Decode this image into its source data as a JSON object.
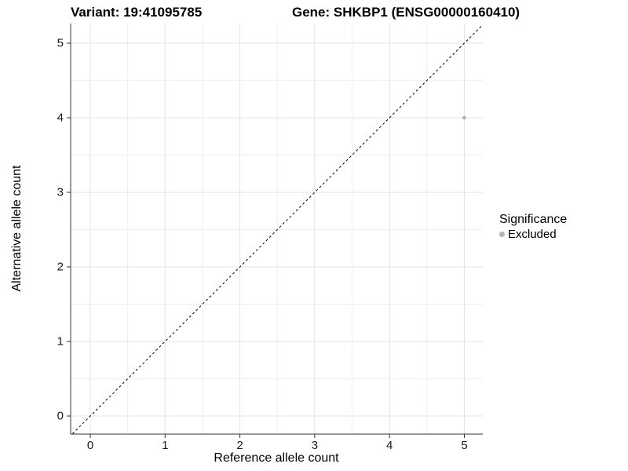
{
  "titles": {
    "variant": "Variant: 19:41095785",
    "gene": "Gene: SHKBP1 (ENSG00000160410)"
  },
  "colors": {
    "background": "#ffffff",
    "axis_line": "#333333",
    "grid_major": "#e3e3e3",
    "grid_minor": "#f0f0f0",
    "identity_line": "#000000",
    "point": "#b3b3b3",
    "text": "#000000"
  },
  "chart_data": {
    "type": "scatter",
    "title_left": "Variant: 19:41095785",
    "title_right": "Gene: SHKBP1 (ENSG00000160410)",
    "xlabel": "Reference allele count",
    "ylabel": "Alternative allele count",
    "xlim": [
      -0.26,
      5.26
    ],
    "ylim": [
      -0.26,
      5.26
    ],
    "x_ticks": [
      "0",
      "1",
      "2",
      "3",
      "4",
      "5"
    ],
    "y_ticks": [
      "0",
      "1",
      "2",
      "3",
      "4",
      "5"
    ],
    "grid": "major and minor gridlines, white panel background",
    "series": [
      {
        "name": "Excluded",
        "color": "#b3b3b3",
        "points": [
          {
            "x": 5,
            "y": 4
          }
        ]
      }
    ],
    "identity_line": {
      "style": "dashed",
      "slope": 1,
      "intercept": 0,
      "color": "#000000"
    },
    "legend": {
      "title": "Significance",
      "position": "right",
      "entries": [
        {
          "label": "Excluded",
          "color": "#b3b3b3"
        }
      ]
    }
  }
}
